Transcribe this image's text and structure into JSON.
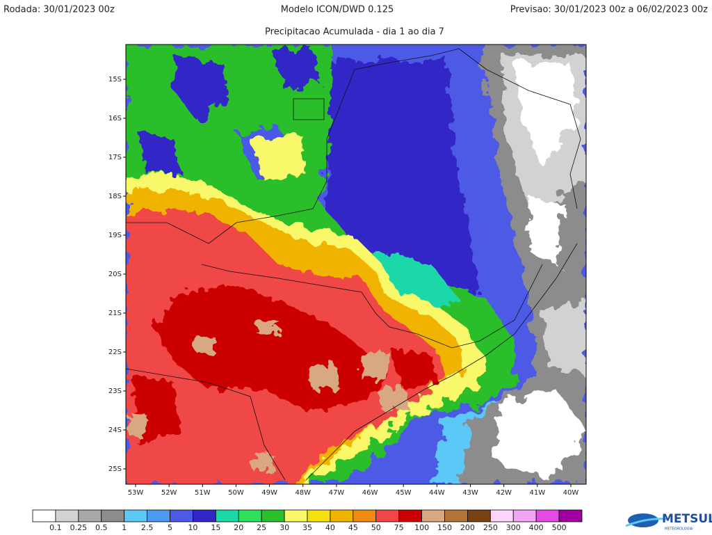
{
  "header": {
    "left": "Rodada: 30/01/2023 00z",
    "center": "Modelo ICON/DWD 0.125",
    "right": "Previsao: 30/01/2023 00z a 06/02/2023 00z",
    "subtitle": "Precipitacao Acumulada - dia 1 ao dia 7"
  },
  "lat_labels": [
    "15S",
    "16S",
    "17S",
    "18S",
    "19S",
    "20S",
    "21S",
    "22S",
    "23S",
    "24S",
    "25S"
  ],
  "lon_labels": [
    "53W",
    "52W",
    "51W",
    "50W",
    "49W",
    "48W",
    "47W",
    "46W",
    "45W",
    "44W",
    "43W",
    "42W",
    "41W",
    "40W"
  ],
  "colorbar": {
    "labels": [
      "0.1",
      "0.25",
      "0.5",
      "1",
      "2.5",
      "5",
      "10",
      "15",
      "20",
      "25",
      "30",
      "35",
      "40",
      "45",
      "50",
      "75",
      "100",
      "150",
      "200",
      "250",
      "300",
      "400",
      "500"
    ],
    "colors": [
      "#ffffff",
      "#d2d2d2",
      "#a8a8a8",
      "#8c8c8c",
      "#5cc8f8",
      "#4a9af0",
      "#4c5ae6",
      "#3226c6",
      "#1cd8a8",
      "#2ee05a",
      "#2cbf2c",
      "#f8f86a",
      "#f4e010",
      "#f0b400",
      "#f08a10",
      "#f04646",
      "#cc0000",
      "#d8a882",
      "#b07434",
      "#7a4210",
      "#ffd4ff",
      "#f4a4f4",
      "#e44ae4",
      "#a000a0"
    ]
  },
  "logo": {
    "name": "METSUL",
    "tagline": "METEOROLOGIA"
  }
}
